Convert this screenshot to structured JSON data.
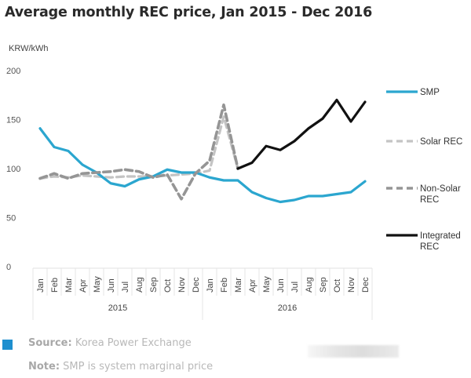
{
  "chart_data": {
    "type": "line",
    "title": "Average monthly REC price, Jan 2015 - Dec 2016",
    "ylabel": "KRW/kWh",
    "xlabel": "",
    "ylim": [
      0,
      200
    ],
    "yticks": [
      0,
      50,
      100,
      150,
      200
    ],
    "grid": false,
    "legend_position": "right",
    "categories": [
      "Jan",
      "Feb",
      "Mar",
      "Apr",
      "May",
      "Jun",
      "Jul",
      "Aug",
      "Sep",
      "Oct",
      "Nov",
      "Dec",
      "Jan",
      "Feb",
      "Mar",
      "Apr",
      "May",
      "Jun",
      "Jul",
      "Aug",
      "Sep",
      "Oct",
      "Nov",
      "Dec"
    ],
    "year_groups": [
      {
        "label": "2015",
        "start": 0,
        "end": 11
      },
      {
        "label": "2016",
        "start": 12,
        "end": 23
      }
    ],
    "series": [
      {
        "name": "SMP",
        "style": "solid",
        "color": "#2ba6cf",
        "values": [
          141,
          122,
          118,
          104,
          96,
          85,
          82,
          89,
          92,
          99,
          96,
          96,
          91,
          88,
          88,
          76,
          70,
          66,
          68,
          72,
          72,
          74,
          76,
          87
        ]
      },
      {
        "name": "Solar REC",
        "style": "dashed",
        "color": "#c4c4c4",
        "values": [
          90,
          92,
          91,
          93,
          92,
          91,
          92,
          92,
          92,
          93,
          94,
          95,
          98,
          153,
          100,
          null,
          null,
          null,
          null,
          null,
          null,
          null,
          null,
          null
        ]
      },
      {
        "name": "Non-Solar REC",
        "style": "dashed",
        "color": "#959595",
        "values": [
          90,
          95,
          90,
          95,
          96,
          97,
          99,
          97,
          91,
          94,
          69,
          95,
          108,
          165,
          100,
          null,
          null,
          null,
          null,
          null,
          null,
          null,
          null,
          null
        ]
      },
      {
        "name": "Integrated REC",
        "style": "solid",
        "color": "#111111",
        "values": [
          null,
          null,
          null,
          null,
          null,
          null,
          null,
          null,
          null,
          null,
          null,
          null,
          null,
          null,
          100,
          106,
          123,
          119,
          128,
          141,
          151,
          170,
          148,
          168
        ]
      }
    ],
    "legend": [
      {
        "label": "SMP"
      },
      {
        "label": "Solar REC"
      },
      {
        "label": "Non-Solar REC"
      },
      {
        "label": "Integrated REC"
      }
    ]
  },
  "footer": {
    "accent_color": "#1e8fcf",
    "source_label": "Source:",
    "source_text": " Korea Power Exchange",
    "note_label": "Note:",
    "note_text": " SMP is system marginal price"
  }
}
